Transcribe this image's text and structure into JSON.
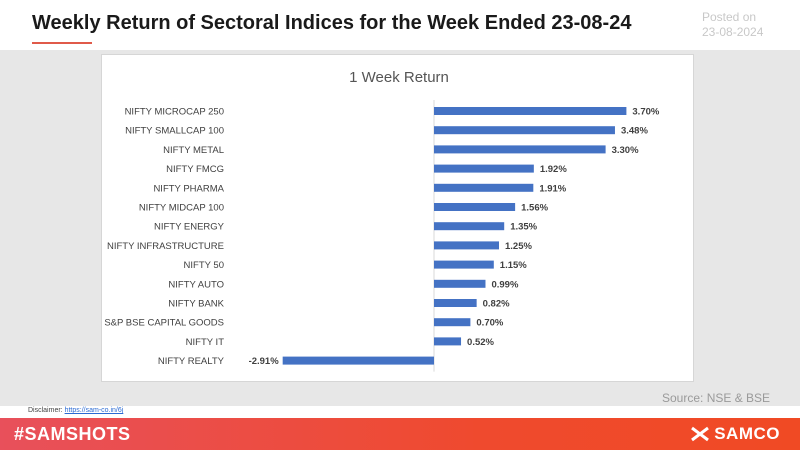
{
  "header": {
    "title": "Weekly Return of Sectoral Indices for the Week Ended 23-08-24",
    "posted_label": "Posted on",
    "posted_date": "23-08-2024"
  },
  "source": "Source: NSE & BSE",
  "disclaimer": {
    "label": "Disclaimer:",
    "link": "https://sam-co.in/6j"
  },
  "footer": {
    "hashtag": "#SAMSHOTS",
    "logo_text": "SAMCO"
  },
  "colors": {
    "bar": "#4472c4",
    "footer_start": "#e8505b",
    "footer_end": "#f04a24"
  },
  "chart_data": {
    "type": "bar",
    "orientation": "horizontal",
    "title": "1 Week Return",
    "xlabel": "",
    "ylabel": "",
    "xlim": [
      -3.0,
      4.0
    ],
    "grid": false,
    "legend": "none",
    "categories": [
      "NIFTY MICROCAP 250",
      "NIFTY SMALLCAP 100",
      "NIFTY METAL",
      "NIFTY FMCG",
      "NIFTY PHARMA",
      "NIFTY MIDCAP 100",
      "NIFTY ENERGY",
      "NIFTY INFRASTRUCTURE",
      "NIFTY 50",
      "NIFTY AUTO",
      "NIFTY BANK",
      "S&P BSE CAPITAL GOODS",
      "NIFTY IT",
      "NIFTY REALTY"
    ],
    "values": [
      3.7,
      3.48,
      3.3,
      1.92,
      1.91,
      1.56,
      1.35,
      1.25,
      1.15,
      0.99,
      0.82,
      0.7,
      0.52,
      -2.91
    ],
    "labels": [
      "3.70%",
      "3.48%",
      "3.30%",
      "1.92%",
      "1.91%",
      "1.56%",
      "1.35%",
      "1.25%",
      "1.15%",
      "0.99%",
      "0.82%",
      "0.70%",
      "0.52%",
      "-2.91%"
    ]
  }
}
